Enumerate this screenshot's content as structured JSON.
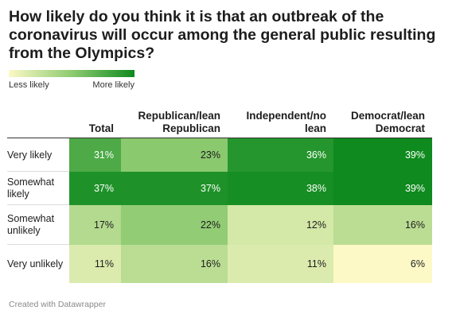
{
  "chart_data": {
    "type": "heatmap",
    "title": "How likely do you think it is that an outbreak of the coronavirus will occur among the general public resulting from the Olympics?",
    "legend": {
      "low_label": "Less likely",
      "high_label": "More likely",
      "range": [
        6,
        39
      ]
    },
    "columns": [
      "Total",
      "Republican/lean Republican",
      "Independent/no lean",
      "Democrat/lean Democrat"
    ],
    "rows": [
      {
        "label": "Very likely",
        "values": [
          31,
          23,
          36,
          39
        ],
        "display": [
          "31%",
          "23%",
          "36%",
          "39%"
        ]
      },
      {
        "label": "Somewhat likely",
        "values": [
          37,
          37,
          38,
          39
        ],
        "display": [
          "37%",
          "37%",
          "38%",
          "39%"
        ]
      },
      {
        "label": "Somewhat unlikely",
        "values": [
          17,
          22,
          12,
          16
        ],
        "display": [
          "17%",
          "22%",
          "12%",
          "16%"
        ]
      },
      {
        "label": "Very unlikely",
        "values": [
          11,
          16,
          11,
          6
        ],
        "display": [
          "11%",
          "16%",
          "11%",
          "6%"
        ]
      }
    ]
  },
  "colors": {
    "scale_low": "#fcf9c6",
    "scale_mid": "#8fcb72",
    "scale_high": "#0e8a1e"
  },
  "footer": {
    "credit": "Created with Datawrapper"
  }
}
